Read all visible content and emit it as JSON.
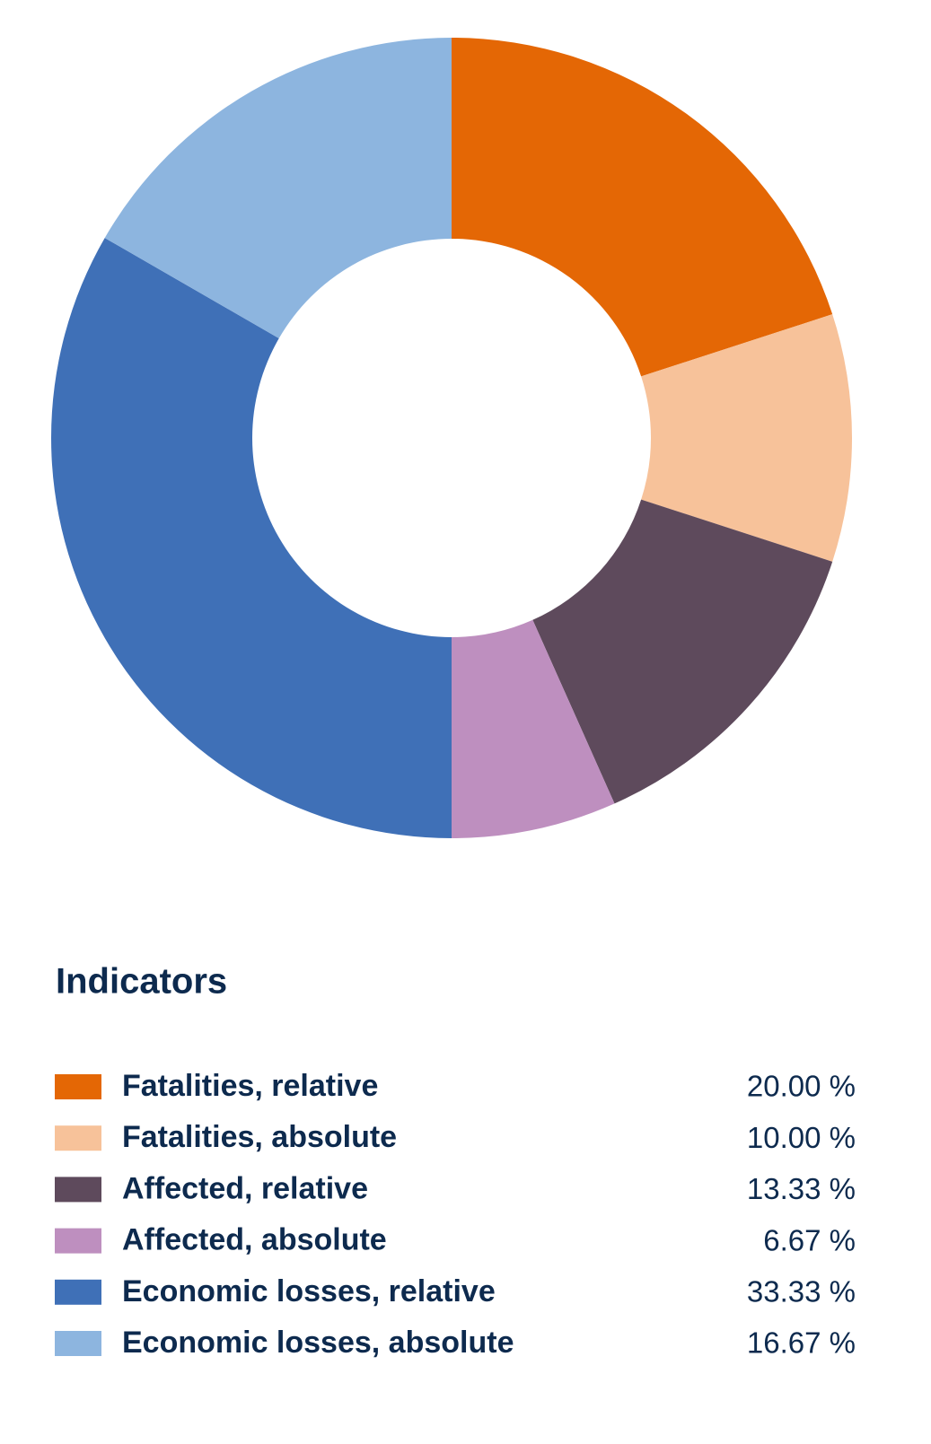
{
  "chart_data": {
    "type": "donut",
    "legend_title": "Indicators",
    "categories": [
      "Fatalities, relative",
      "Fatalities, absolute",
      "Affected, relative",
      "Affected, absolute",
      "Economic losses, relative",
      "Economic losses, absolute"
    ],
    "values": [
      20,
      10,
      13.33,
      6.67,
      33.33,
      16.67
    ],
    "value_labels": [
      "20.00 %",
      "10.00 %",
      "13.33 %",
      "6.67 %",
      "33.33 %",
      "16.67 %"
    ],
    "colors": [
      "#e46705",
      "#f7c29a",
      "#5e4a5c",
      "#be8fbf",
      "#3f70b7",
      "#8db5df"
    ]
  }
}
